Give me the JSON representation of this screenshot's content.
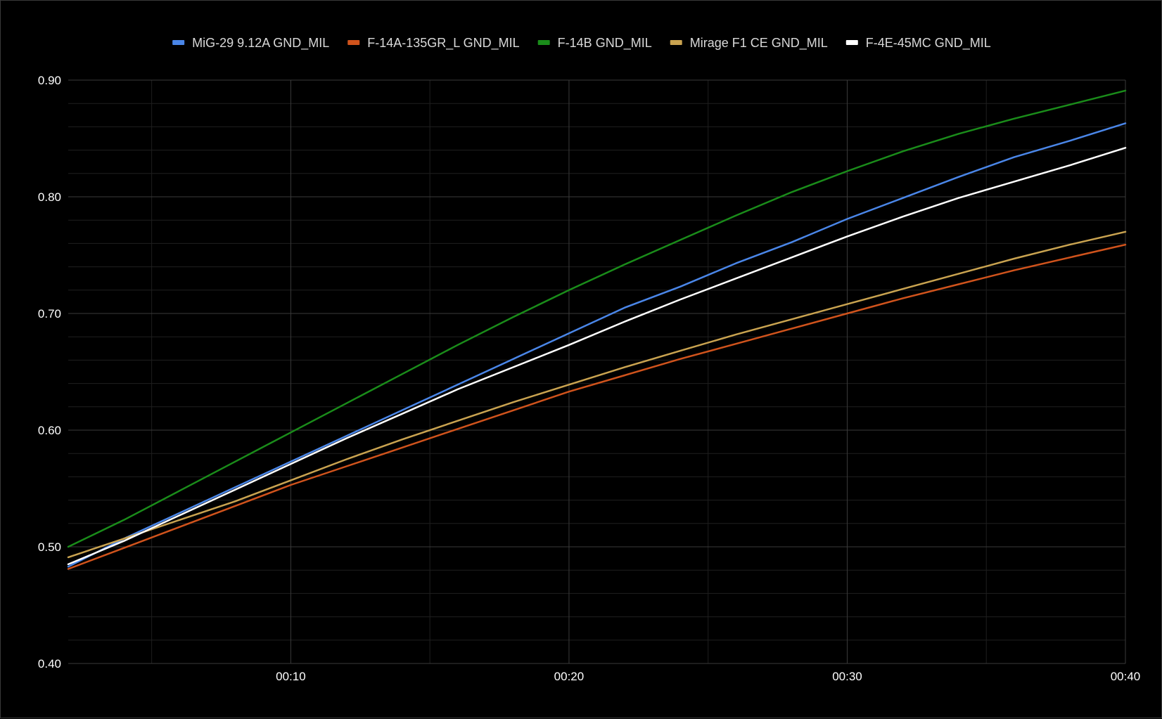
{
  "chart_data": {
    "type": "line",
    "title": "",
    "xlabel": "",
    "ylabel": "",
    "x_unit": "seconds",
    "xlim": [
      2,
      40
    ],
    "ylim": [
      0.4,
      0.9
    ],
    "x_ticks": [
      {
        "value": 10,
        "label": "00:10"
      },
      {
        "value": 20,
        "label": "00:20"
      },
      {
        "value": 30,
        "label": "00:30"
      },
      {
        "value": 40,
        "label": "00:40"
      }
    ],
    "y_ticks": [
      {
        "value": 0.4,
        "label": "0.40"
      },
      {
        "value": 0.5,
        "label": "0.50"
      },
      {
        "value": 0.6,
        "label": "0.60"
      },
      {
        "value": 0.7,
        "label": "0.70"
      },
      {
        "value": 0.8,
        "label": "0.80"
      },
      {
        "value": 0.9,
        "label": "0.90"
      }
    ],
    "x_minor_grid": [
      5,
      15,
      25,
      35
    ],
    "y_minor_grid": [
      0.42,
      0.44,
      0.46,
      0.48,
      0.52,
      0.54,
      0.56,
      0.58,
      0.62,
      0.64,
      0.66,
      0.68,
      0.72,
      0.74,
      0.76,
      0.78,
      0.82,
      0.84,
      0.86,
      0.88
    ],
    "grid": true,
    "legend_position": "top-center",
    "x": [
      2,
      4,
      6,
      8,
      10,
      12,
      14,
      16,
      18,
      20,
      22,
      24,
      26,
      28,
      30,
      32,
      34,
      36,
      38,
      40
    ],
    "series": [
      {
        "name": "MiG-29 9.12A GND_MIL",
        "color": "#4a86e8",
        "values": [
          0.483,
          0.507,
          0.529,
          0.551,
          0.573,
          0.595,
          0.617,
          0.639,
          0.661,
          0.683,
          0.705,
          0.723,
          0.743,
          0.761,
          0.781,
          0.799,
          0.817,
          0.834,
          0.848,
          0.863
        ]
      },
      {
        "name": "F-14A-135GR_L GND_MIL",
        "color": "#d0531c",
        "values": [
          0.481,
          0.499,
          0.517,
          0.535,
          0.553,
          0.569,
          0.585,
          0.601,
          0.617,
          0.633,
          0.647,
          0.661,
          0.674,
          0.687,
          0.7,
          0.713,
          0.725,
          0.737,
          0.748,
          0.759
        ]
      },
      {
        "name": "F-14B GND_MIL",
        "color": "#1a8c1a",
        "values": [
          0.5,
          0.523,
          0.548,
          0.573,
          0.598,
          0.623,
          0.648,
          0.673,
          0.697,
          0.72,
          0.742,
          0.763,
          0.784,
          0.804,
          0.822,
          0.839,
          0.854,
          0.867,
          0.879,
          0.891
        ]
      },
      {
        "name": "Mirage F1 CE GND_MIL",
        "color": "#c9a350",
        "values": [
          0.491,
          0.507,
          0.523,
          0.539,
          0.557,
          0.575,
          0.592,
          0.608,
          0.624,
          0.639,
          0.654,
          0.668,
          0.682,
          0.695,
          0.708,
          0.721,
          0.734,
          0.747,
          0.759,
          0.77
        ]
      },
      {
        "name": "F-4E-45MC GND_MIL",
        "color": "#ffffff",
        "values": [
          0.485,
          0.505,
          0.527,
          0.549,
          0.571,
          0.593,
          0.614,
          0.635,
          0.654,
          0.673,
          0.693,
          0.712,
          0.73,
          0.748,
          0.766,
          0.783,
          0.799,
          0.813,
          0.827,
          0.842
        ]
      }
    ]
  }
}
